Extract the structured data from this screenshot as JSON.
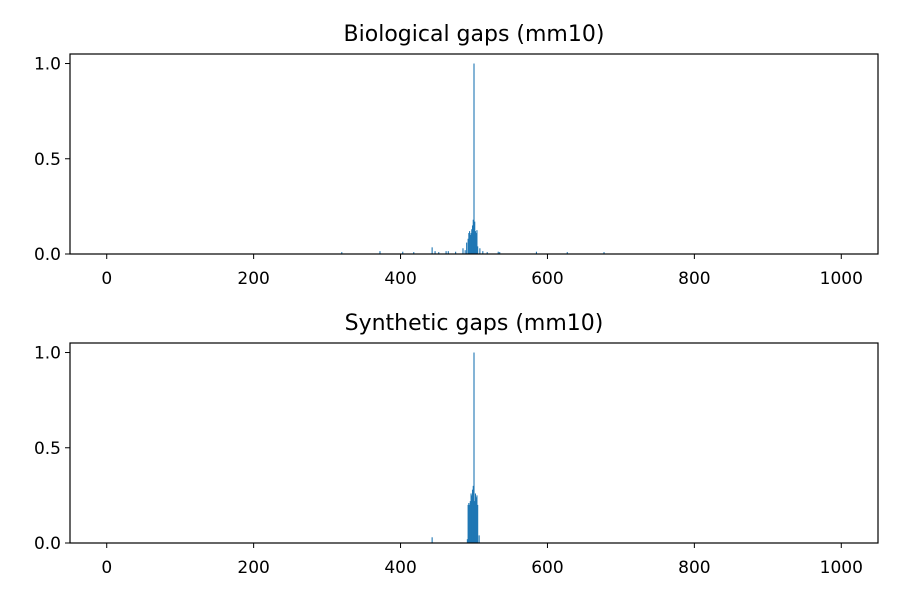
{
  "chart_data": [
    {
      "type": "bar",
      "title": "Biological gaps (mm10)",
      "xlabel": "",
      "ylabel": "",
      "xlim": [
        -50,
        1050
      ],
      "ylim": [
        0,
        1.05
      ],
      "xticks": [
        0,
        200,
        400,
        600,
        800,
        1000
      ],
      "yticks": [
        0.0,
        0.5,
        1.0
      ],
      "xtick_labels": [
        "0",
        "200",
        "400",
        "600",
        "800",
        "1000"
      ],
      "ytick_labels": [
        "0.0",
        "0.5",
        "1.0"
      ],
      "color": "#1f77b4",
      "grid": false,
      "x": [
        320,
        372,
        403,
        418,
        443,
        447,
        452,
        462,
        465,
        475,
        485,
        488,
        490,
        492,
        493,
        494,
        495,
        496,
        497,
        498,
        499,
        500,
        501,
        502,
        503,
        504,
        505,
        508,
        512,
        518,
        533,
        535,
        585,
        627,
        677
      ],
      "values": [
        0.01,
        0.015,
        0.012,
        0.01,
        0.035,
        0.015,
        0.01,
        0.015,
        0.015,
        0.012,
        0.03,
        0.02,
        0.06,
        0.08,
        0.11,
        0.12,
        0.1,
        0.11,
        0.13,
        0.15,
        0.18,
        1.0,
        0.17,
        0.12,
        0.11,
        0.125,
        0.04,
        0.03,
        0.015,
        0.01,
        0.012,
        0.01,
        0.012,
        0.01,
        0.01
      ]
    },
    {
      "type": "bar",
      "title": "Synthetic gaps (mm10)",
      "xlabel": "",
      "ylabel": "",
      "xlim": [
        -50,
        1050
      ],
      "ylim": [
        0,
        1.05
      ],
      "xticks": [
        0,
        200,
        400,
        600,
        800,
        1000
      ],
      "yticks": [
        0.0,
        0.5,
        1.0
      ],
      "xtick_labels": [
        "0",
        "200",
        "400",
        "600",
        "800",
        "1000"
      ],
      "ytick_labels": [
        "0.0",
        "0.5",
        "1.0"
      ],
      "color": "#1f77b4",
      "grid": false,
      "x": [
        443,
        491,
        492,
        493,
        494,
        495,
        496,
        497,
        498,
        499,
        500,
        501,
        502,
        503,
        504,
        505,
        507
      ],
      "values": [
        0.03,
        0.02,
        0.2,
        0.21,
        0.2,
        0.22,
        0.26,
        0.25,
        0.28,
        0.3,
        1.0,
        0.22,
        0.26,
        0.24,
        0.25,
        0.2,
        0.04
      ]
    }
  ]
}
